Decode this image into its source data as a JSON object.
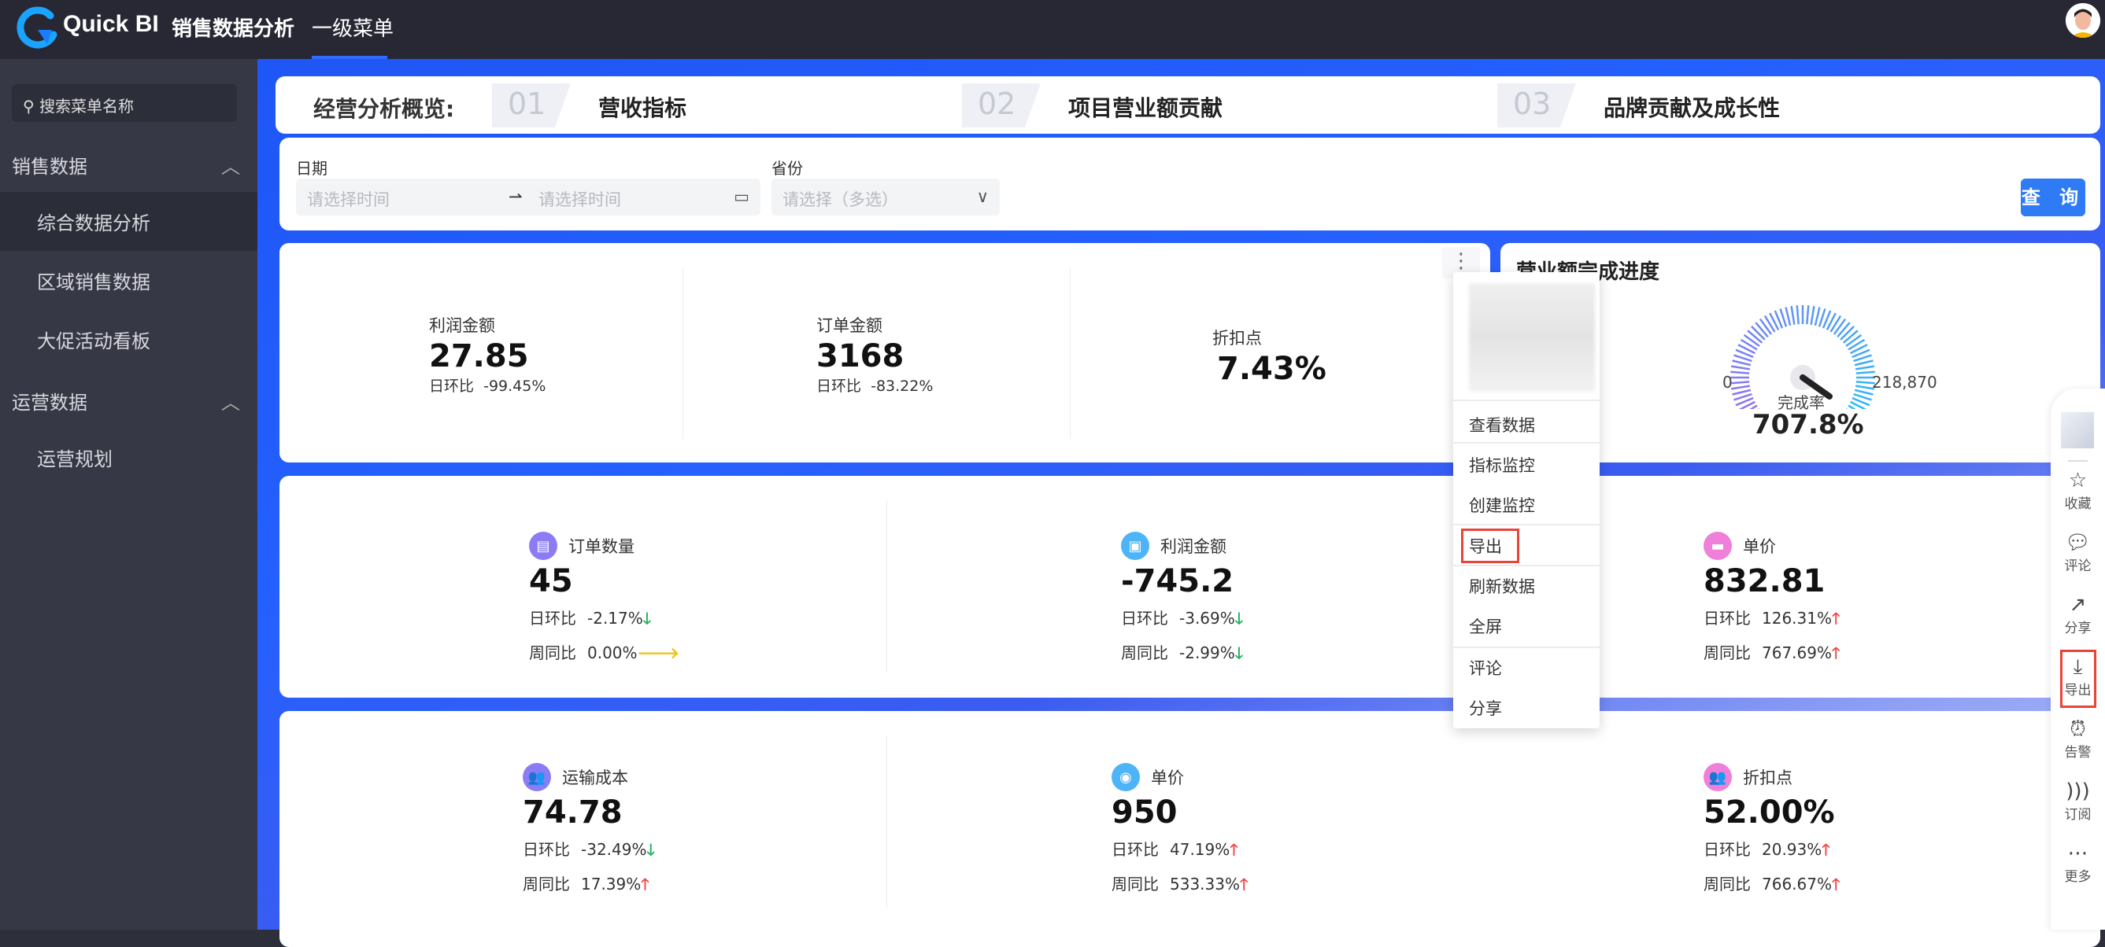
{
  "header": {
    "brand": "Quick BI",
    "app_title": "销售数据分析",
    "menu": "一级菜单"
  },
  "sidebar": {
    "search_placeholder": "搜索菜单名称",
    "groups": [
      {
        "label": "销售数据",
        "items": [
          "综合数据分析",
          "区域销售数据",
          "大促活动看板"
        ]
      },
      {
        "label": "运营数据",
        "items": [
          "运营规划"
        ]
      }
    ],
    "active": "综合数据分析"
  },
  "nav": {
    "label": "经营分析概览:",
    "steps": [
      {
        "num": "01",
        "label": "营收指标"
      },
      {
        "num": "02",
        "label": "项目营业额贡献"
      },
      {
        "num": "03",
        "label": "品牌贡献及成长性"
      }
    ]
  },
  "filter": {
    "date_label": "日期",
    "start_placeholder": "请选择时间",
    "end_placeholder": "请选择时间",
    "province_label": "省份",
    "province_placeholder": "请选择（多选）",
    "query": "查 询"
  },
  "kpi_top": [
    {
      "title": "利润金额",
      "value": "27.85",
      "cmp_label": "日环比",
      "cmp": "-99.45%"
    },
    {
      "title": "订单金额",
      "value": "3168",
      "cmp_label": "日环比",
      "cmp": "-83.22%"
    },
    {
      "title": "折扣点",
      "value": "7.43%"
    }
  ],
  "gauge": {
    "title": "营业额完成进度",
    "min": "0",
    "max": "218,870",
    "label": "完成率",
    "value": "707.8%"
  },
  "kpis": [
    {
      "title": "订单数量",
      "value": "45",
      "d": "-2.17%",
      "dt": "down",
      "w": "0.00%",
      "wt": "flat",
      "color": "#8b7cf6",
      "icon": "building-icon"
    },
    {
      "title": "利润金额",
      "value": "-745.2",
      "d": "-3.69%",
      "dt": "down",
      "w": "-2.99%",
      "wt": "down",
      "color": "#4db4f7",
      "icon": "wallet-icon"
    },
    {
      "title": "单价",
      "value": "832.81",
      "d": "126.31%",
      "dt": "up",
      "w": "767.69%",
      "wt": "up",
      "color": "#ef7fd8",
      "icon": "store-icon"
    },
    {
      "title": "运输成本",
      "value": "74.78",
      "d": "-32.49%",
      "dt": "down",
      "w": "17.39%",
      "wt": "up",
      "color": "#8b7cf6",
      "icon": "users-icon"
    },
    {
      "title": "单价",
      "value": "950",
      "d": "47.19%",
      "dt": "up",
      "w": "533.33%",
      "wt": "up",
      "color": "#4db4f7",
      "icon": "eye-icon"
    },
    {
      "title": "折扣点",
      "value": "52.00%",
      "d": "20.93%",
      "dt": "up",
      "w": "766.67%",
      "wt": "up",
      "color": "#ef7fd8",
      "icon": "people-icon"
    }
  ],
  "labels": {
    "day": "日环比",
    "week": "周同比"
  },
  "context_menu": [
    "查看数据",
    "指标监控",
    "创建监控",
    "导出",
    "刷新数据",
    "全屏",
    "评论",
    "分享"
  ],
  "tools": [
    {
      "label": "收藏",
      "icon": "star-icon"
    },
    {
      "label": "评论",
      "icon": "comment-icon"
    },
    {
      "label": "分享",
      "icon": "share-icon"
    },
    {
      "label": "导出",
      "icon": "download-icon"
    },
    {
      "label": "告警",
      "icon": "alarm-icon"
    },
    {
      "label": "订阅",
      "icon": "rss-icon"
    },
    {
      "label": "更多",
      "icon": "more-icon"
    }
  ]
}
